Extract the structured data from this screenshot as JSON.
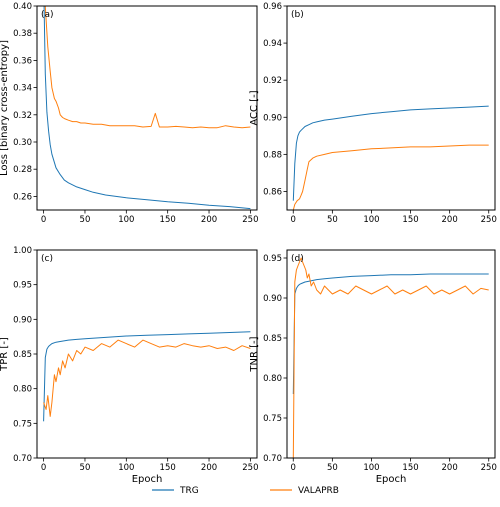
{
  "chart_data": {
    "type": "line",
    "legend": {
      "position": "bottom-center",
      "entries": [
        {
          "name": "TRG",
          "color": "#1f77b4"
        },
        {
          "name": "VALAPRB",
          "color": "#ff7f0e"
        }
      ]
    },
    "panels": [
      {
        "panel": "(a)",
        "xlabel": "",
        "ylabel": "Loss [binary cross-entropy]",
        "xlim": [
          -8,
          258
        ],
        "ylim": [
          0.25,
          0.4
        ],
        "xticks": [
          0,
          50,
          100,
          150,
          200,
          250
        ],
        "yticks": [
          0.26,
          0.28,
          0.3,
          0.32,
          0.34,
          0.36,
          0.38,
          0.4
        ],
        "ytick_labels": [
          "0.26",
          "0.28",
          "0.30",
          "0.32",
          "0.34",
          "0.36",
          "0.38",
          "0.40"
        ],
        "grid": false,
        "series": [
          {
            "name": "TRG",
            "x": [
              0,
              2,
              4,
              6,
              8,
              10,
              15,
              20,
              25,
              30,
              40,
              50,
              60,
              75,
              100,
              125,
              150,
              175,
              200,
              225,
              250
            ],
            "values": [
              0.42,
              0.35,
              0.322,
              0.308,
              0.298,
              0.291,
              0.281,
              0.276,
              0.272,
              0.27,
              0.267,
              0.265,
              0.263,
              0.261,
              0.259,
              0.2575,
              0.256,
              0.255,
              0.2535,
              0.2525,
              0.251
            ]
          },
          {
            "name": "VALAPRB",
            "x": [
              0,
              3,
              5,
              8,
              10,
              13,
              15,
              18,
              20,
              23,
              26,
              30,
              35,
              40,
              45,
              50,
              60,
              70,
              80,
              90,
              100,
              110,
              120,
              130,
              135,
              140,
              150,
              160,
              170,
              180,
              190,
              200,
              210,
              220,
              230,
              240,
              250
            ],
            "values": [
              0.42,
              0.39,
              0.37,
              0.352,
              0.34,
              0.332,
              0.33,
              0.325,
              0.32,
              0.318,
              0.317,
              0.316,
              0.315,
              0.315,
              0.314,
              0.314,
              0.313,
              0.313,
              0.312,
              0.312,
              0.312,
              0.312,
              0.311,
              0.3115,
              0.321,
              0.311,
              0.311,
              0.3115,
              0.311,
              0.3105,
              0.311,
              0.3105,
              0.3105,
              0.312,
              0.311,
              0.3105,
              0.311
            ]
          }
        ]
      },
      {
        "panel": "(b)",
        "xlabel": "",
        "ylabel": "ACC [-]",
        "xlim": [
          -8,
          258
        ],
        "ylim": [
          0.85,
          0.96
        ],
        "xticks": [
          0,
          50,
          100,
          150,
          200,
          250
        ],
        "yticks": [
          0.86,
          0.88,
          0.9,
          0.92,
          0.94,
          0.96
        ],
        "ytick_labels": [
          "0.86",
          "0.88",
          "0.90",
          "0.92",
          "0.94",
          "0.96"
        ],
        "grid": false,
        "series": [
          {
            "name": "TRG",
            "x": [
              0,
              2,
              4,
              6,
              8,
              10,
              15,
              20,
              25,
              30,
              40,
              50,
              75,
              100,
              125,
              150,
              175,
              200,
              225,
              250
            ],
            "values": [
              0.855,
              0.875,
              0.886,
              0.89,
              0.892,
              0.893,
              0.895,
              0.896,
              0.897,
              0.8975,
              0.8985,
              0.899,
              0.9005,
              0.902,
              0.903,
              0.904,
              0.9045,
              0.905,
              0.9055,
              0.906
            ]
          },
          {
            "name": "VALAPRB",
            "x": [
              0,
              2,
              5,
              8,
              10,
              12,
              15,
              18,
              20,
              25,
              30,
              40,
              50,
              75,
              100,
              125,
              150,
              175,
              200,
              225,
              250
            ],
            "values": [
              0.85,
              0.853,
              0.855,
              0.856,
              0.858,
              0.86,
              0.866,
              0.872,
              0.876,
              0.878,
              0.879,
              0.88,
              0.881,
              0.882,
              0.883,
              0.8835,
              0.884,
              0.884,
              0.8845,
              0.885,
              0.885
            ]
          }
        ]
      },
      {
        "panel": "(c)",
        "xlabel": "Epoch",
        "ylabel": "TPR [-]",
        "xlim": [
          -8,
          258
        ],
        "ylim": [
          0.7,
          1.0
        ],
        "xticks": [
          0,
          50,
          100,
          150,
          200,
          250
        ],
        "yticks": [
          0.7,
          0.75,
          0.8,
          0.85,
          0.9,
          0.95,
          1.0
        ],
        "ytick_labels": [
          "0.70",
          "0.75",
          "0.80",
          "0.85",
          "0.90",
          "0.95",
          "1.00"
        ],
        "grid": false,
        "series": [
          {
            "name": "TRG",
            "x": [
              0,
              2,
              4,
              6,
              8,
              10,
              15,
              20,
              30,
              40,
              50,
              75,
              100,
              125,
              150,
              175,
              200,
              225,
              250
            ],
            "values": [
              0.753,
              0.845,
              0.857,
              0.861,
              0.863,
              0.865,
              0.867,
              0.868,
              0.87,
              0.871,
              0.872,
              0.874,
              0.876,
              0.877,
              0.878,
              0.879,
              0.88,
              0.881,
              0.882
            ]
          },
          {
            "name": "VALAPRB",
            "x": [
              0,
              3,
              5,
              8,
              10,
              13,
              15,
              18,
              20,
              23,
              26,
              30,
              35,
              40,
              45,
              50,
              60,
              70,
              80,
              90,
              100,
              110,
              120,
              130,
              140,
              150,
              160,
              170,
              180,
              190,
              200,
              210,
              220,
              230,
              240,
              250
            ],
            "values": [
              0.78,
              0.77,
              0.79,
              0.76,
              0.78,
              0.82,
              0.81,
              0.83,
              0.82,
              0.84,
              0.83,
              0.85,
              0.84,
              0.855,
              0.85,
              0.86,
              0.855,
              0.865,
              0.86,
              0.87,
              0.865,
              0.86,
              0.87,
              0.865,
              0.86,
              0.862,
              0.86,
              0.865,
              0.862,
              0.86,
              0.862,
              0.858,
              0.86,
              0.855,
              0.862,
              0.858
            ]
          }
        ]
      },
      {
        "panel": "(d)",
        "xlabel": "Epoch",
        "ylabel": "TNR [-]",
        "xlim": [
          -8,
          258
        ],
        "ylim": [
          0.7,
          0.96
        ],
        "xticks": [
          0,
          50,
          100,
          150,
          200,
          250
        ],
        "yticks": [
          0.7,
          0.75,
          0.8,
          0.85,
          0.9,
          0.95
        ],
        "ytick_labels": [
          "0.70",
          "0.75",
          "0.80",
          "0.85",
          "0.90",
          "0.95"
        ],
        "grid": false,
        "series": [
          {
            "name": "TRG",
            "x": [
              0,
              2,
              4,
              6,
              8,
              10,
              15,
              20,
              30,
              40,
              50,
              75,
              100,
              125,
              150,
              175,
              200,
              225,
              250
            ],
            "values": [
              0.78,
              0.905,
              0.912,
              0.915,
              0.917,
              0.918,
              0.92,
              0.921,
              0.923,
              0.924,
              0.925,
              0.927,
              0.928,
              0.929,
              0.929,
              0.93,
              0.93,
              0.93,
              0.93
            ]
          },
          {
            "name": "VALAPRB",
            "x": [
              0,
              2,
              4,
              6,
              8,
              10,
              12,
              14,
              16,
              18,
              20,
              23,
              26,
              30,
              35,
              40,
              45,
              50,
              60,
              70,
              80,
              90,
              100,
              110,
              120,
              130,
              140,
              150,
              160,
              170,
              180,
              190,
              200,
              210,
              220,
              230,
              240,
              250
            ],
            "values": [
              0.7,
              0.92,
              0.935,
              0.94,
              0.945,
              0.95,
              0.945,
              0.94,
              0.935,
              0.925,
              0.93,
              0.915,
              0.92,
              0.91,
              0.905,
              0.915,
              0.91,
              0.905,
              0.91,
              0.905,
              0.915,
              0.91,
              0.905,
              0.91,
              0.915,
              0.905,
              0.91,
              0.905,
              0.91,
              0.915,
              0.905,
              0.91,
              0.905,
              0.91,
              0.915,
              0.905,
              0.912,
              0.91
            ]
          }
        ]
      }
    ]
  }
}
